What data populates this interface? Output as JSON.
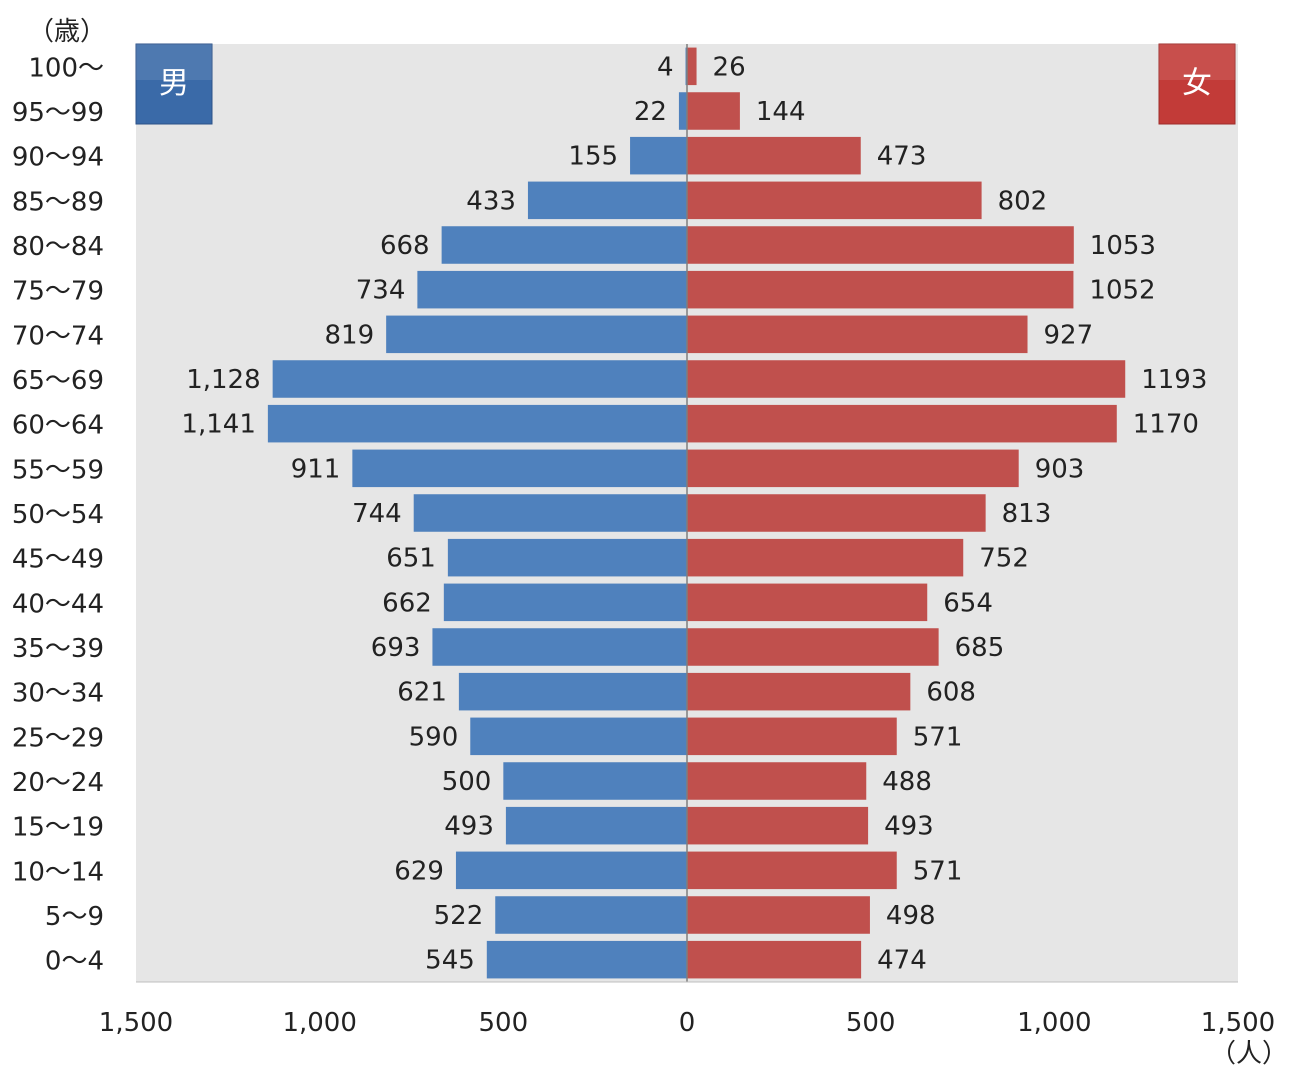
{
  "chart_data": {
    "type": "bar",
    "orientation": "horizontal-population-pyramid",
    "categories": [
      "100～",
      "95～99",
      "90～94",
      "85～89",
      "80～84",
      "75～79",
      "70～74",
      "65～69",
      "60～64",
      "55～59",
      "50～54",
      "45～49",
      "40～44",
      "35～39",
      "30～34",
      "25～29",
      "20～24",
      "15～19",
      "10～14",
      "5～9",
      "0～4"
    ],
    "series": [
      {
        "name": "男",
        "color": "#4f81bd",
        "values": [
          4,
          22,
          155,
          433,
          668,
          734,
          819,
          1128,
          1141,
          911,
          744,
          651,
          662,
          693,
          621,
          590,
          500,
          493,
          629,
          522,
          545
        ],
        "labels": [
          "4",
          "22",
          "155",
          "433",
          "668",
          "734",
          "819",
          "1,128",
          "1,141",
          "911",
          "744",
          "651",
          "662",
          "693",
          "621",
          "590",
          "500",
          "493",
          "629",
          "522",
          "545"
        ]
      },
      {
        "name": "女",
        "color": "#c0504d",
        "values": [
          26,
          144,
          473,
          802,
          1053,
          1052,
          927,
          1193,
          1170,
          903,
          813,
          752,
          654,
          685,
          608,
          571,
          488,
          493,
          571,
          498,
          474
        ],
        "labels": [
          "26",
          "144",
          "473",
          "802",
          "1053",
          "1052",
          "927",
          "1193",
          "1170",
          "903",
          "813",
          "752",
          "654",
          "685",
          "608",
          "571",
          "488",
          "493",
          "571",
          "498",
          "474"
        ]
      }
    ],
    "xlim": [
      -1500,
      1500
    ],
    "x_ticks": [
      -1500,
      -1000,
      -500,
      0,
      500,
      1000,
      1500
    ],
    "x_tick_labels": [
      "1,500",
      "1,000",
      "500",
      "0",
      "500",
      "1,000",
      "1,500"
    ],
    "y_unit_label": "（歳）",
    "x_unit_label": "（人）",
    "plot_background": "#e6e6e6",
    "grid": false,
    "legend": [
      "男",
      "女"
    ]
  }
}
